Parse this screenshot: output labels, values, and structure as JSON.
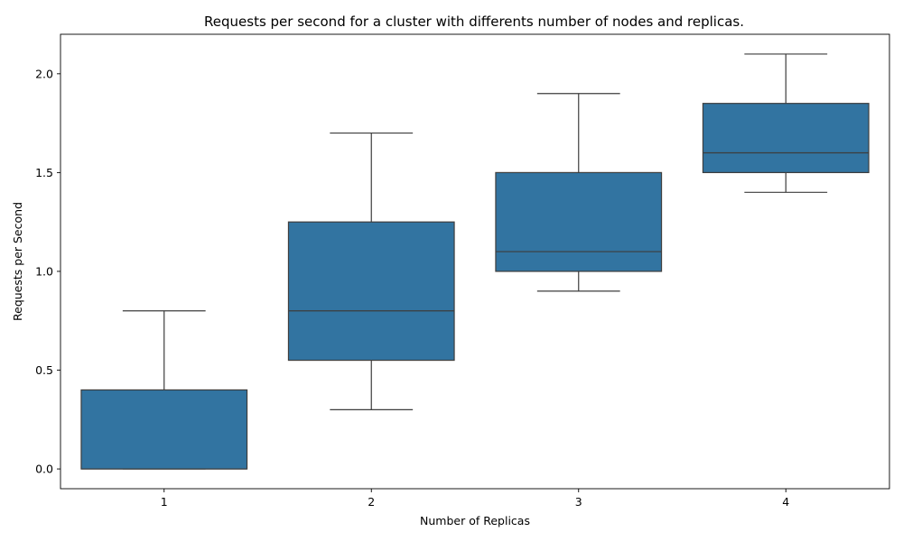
{
  "chart_data": {
    "type": "box",
    "title": "Requests per second for a cluster with differents number of nodes and replicas.",
    "xlabel": "Number of Replicas",
    "ylabel": "Requests per Second",
    "categories": [
      "1",
      "2",
      "3",
      "4"
    ],
    "ylim": [
      -0.1,
      2.2
    ],
    "yticks": [
      0.0,
      0.5,
      1.0,
      1.5,
      2.0
    ],
    "ytick_labels": [
      "0.0",
      "0.5",
      "1.0",
      "1.5",
      "2.0"
    ],
    "grid": false,
    "box_color": "#3274a1",
    "line_color": "#3d3d3d",
    "boxes": [
      {
        "category": "1",
        "whisker_low": 0.0,
        "q1": 0.0,
        "median": 0.0,
        "q3": 0.4,
        "whisker_high": 0.8
      },
      {
        "category": "2",
        "whisker_low": 0.3,
        "q1": 0.55,
        "median": 0.8,
        "q3": 1.25,
        "whisker_high": 1.7
      },
      {
        "category": "3",
        "whisker_low": 0.9,
        "q1": 1.0,
        "median": 1.1,
        "q3": 1.5,
        "whisker_high": 1.9
      },
      {
        "category": "4",
        "whisker_low": 1.4,
        "q1": 1.5,
        "median": 1.6,
        "q3": 1.85,
        "whisker_high": 2.1
      }
    ]
  }
}
